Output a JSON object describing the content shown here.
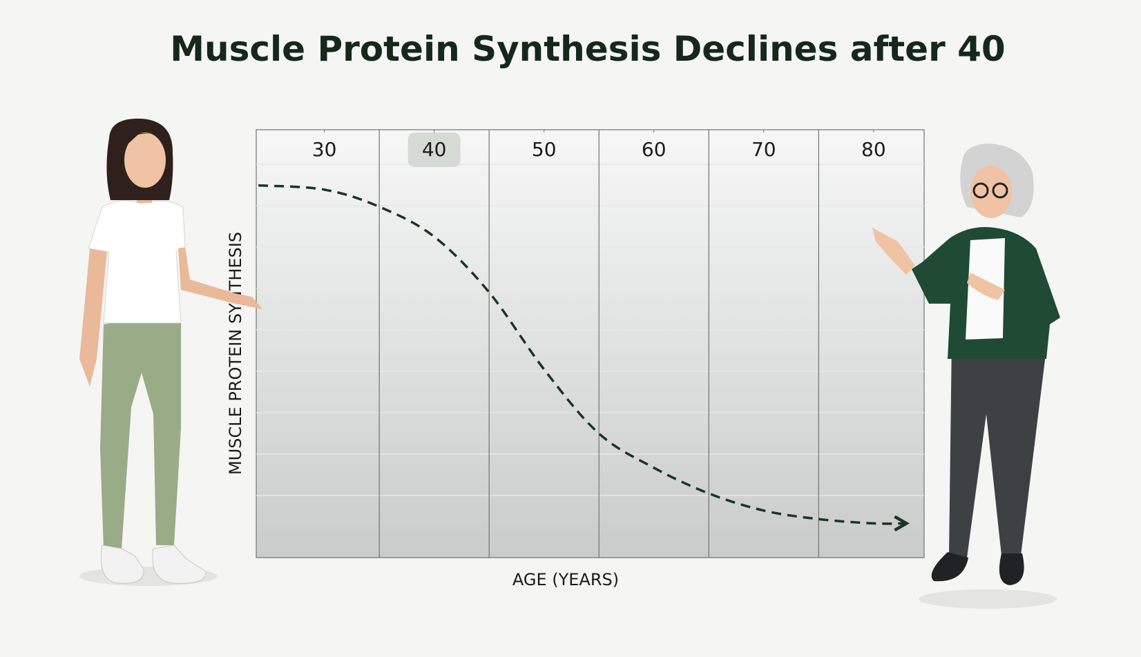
{
  "chart_data": {
    "type": "line",
    "title": "Muscle Protein Synthesis Declines after 40",
    "x_label": "AGE (YEARS)",
    "y_label": "MUSCLE PROTEIN SYNTHESIS",
    "x": [
      24,
      30,
      35,
      40,
      45,
      50,
      55,
      60,
      65,
      70,
      75,
      80,
      83
    ],
    "values": [
      87,
      86,
      82,
      75,
      62,
      44,
      29,
      21,
      15,
      11,
      9,
      8,
      8
    ],
    "color": "#1b3526",
    "xlim": [
      23.8,
      84.6
    ],
    "ylim": [
      0,
      100
    ],
    "xticks": [
      30,
      40,
      50,
      60,
      70,
      80
    ]
  }
}
